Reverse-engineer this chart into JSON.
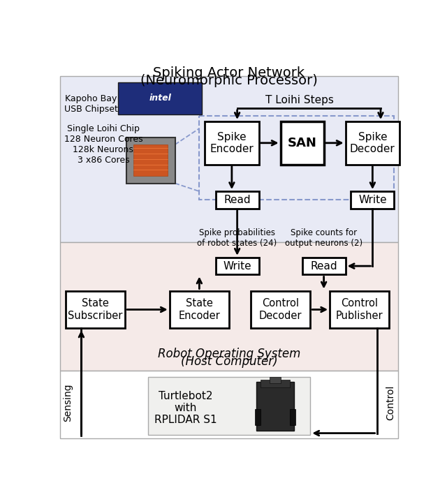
{
  "title_line1": "Spiking Actor Network",
  "title_line2": "(Neuromorphic Processor)",
  "bg_top_color": "#e8eaf5",
  "bg_bottom_color": "#f5eae8",
  "dashed_color": "#8899cc",
  "loihi_steps_label": "T Loihi Steps",
  "ros_label_line1": "Robot Operating System",
  "ros_label_line2": "(Host Computer)",
  "kapoho_label": "Kapoho Bay\nUSB Chipset",
  "loihi_chip_label": "Single Loihi Chip\n128 Neuron Cores\n128k Neurons\n3 x86 Cores",
  "spike_encoder_label": "Spike\nEncoder",
  "san_label": "SAN",
  "spike_decoder_label": "Spike\nDecoder",
  "read_top_label": "Read",
  "write_top_label": "Write",
  "write_bot_label": "Write",
  "read_bot_label": "Read",
  "state_sub_label": "State\nSubscriber",
  "state_enc_label": "State\nEncoder",
  "ctrl_dec_label": "Control\nDecoder",
  "ctrl_pub_label": "Control\nPublisher",
  "spike_prob_label": "Spike probabilities\nof robot states (24)",
  "spike_count_label": "Spike counts for\noutput neurons (2)",
  "sensing_label": "Sensing",
  "control_label": "Control",
  "turtlebot_label": "Turtlebot2\nwith\nRPLIDAR S1"
}
